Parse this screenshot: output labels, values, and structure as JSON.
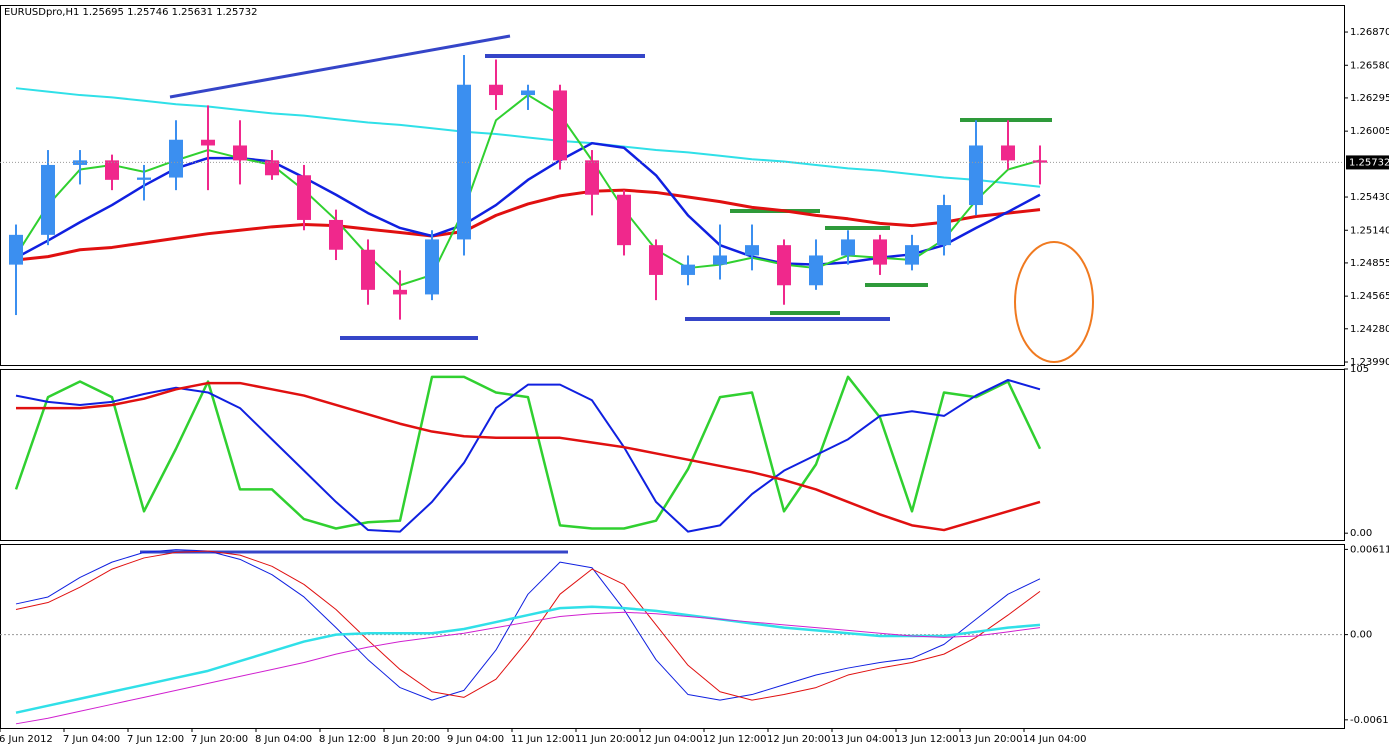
{
  "chart_data": [
    {
      "type": "candlestick",
      "title": "EURUSDpro,H1  1.25695 1.25746 1.25631 1.25732",
      "up_color": "#3b8ff0",
      "down_color": "#f0288c",
      "open": [
        1.2484,
        1.251,
        1.2571,
        1.2575,
        1.2558,
        1.256,
        1.2593,
        1.2588,
        1.2575,
        1.2562,
        1.2523,
        1.2497,
        1.2462,
        1.2458,
        1.2506,
        1.2641,
        1.2632,
        1.2636,
        1.2575,
        1.2545,
        1.2501,
        1.2475,
        1.2484,
        1.2492,
        1.2501,
        1.2466,
        1.2492,
        1.2506,
        1.2484,
        1.2501,
        1.2536,
        1.2588,
        1.2575
      ],
      "high": [
        1.2519,
        1.2584,
        1.2584,
        1.258,
        1.2571,
        1.261,
        1.2623,
        1.261,
        1.2584,
        1.2571,
        1.2532,
        1.2506,
        1.2479,
        1.2514,
        1.2667,
        1.2663,
        1.2641,
        1.2641,
        1.2584,
        1.2549,
        1.2506,
        1.2492,
        1.2519,
        1.2519,
        1.2506,
        1.2506,
        1.2514,
        1.251,
        1.251,
        1.2545,
        1.261,
        1.261,
        1.2588
      ],
      "low": [
        1.244,
        1.2501,
        1.2554,
        1.2549,
        1.254,
        1.2549,
        1.2549,
        1.2554,
        1.2558,
        1.2514,
        1.2488,
        1.2449,
        1.2436,
        1.2453,
        1.2492,
        1.2619,
        1.2619,
        1.2567,
        1.2527,
        1.2492,
        1.2453,
        1.2466,
        1.2471,
        1.2479,
        1.2449,
        1.2462,
        1.2484,
        1.2475,
        1.2479,
        1.2492,
        1.2527,
        1.2567,
        1.2554
      ],
      "close": [
        1.251,
        1.2571,
        1.2575,
        1.2558,
        1.256,
        1.2593,
        1.2588,
        1.2575,
        1.2562,
        1.2523,
        1.2497,
        1.2462,
        1.2458,
        1.2506,
        1.2641,
        1.2632,
        1.2636,
        1.2575,
        1.2545,
        1.2501,
        1.2475,
        1.2484,
        1.2492,
        1.2501,
        1.2466,
        1.2492,
        1.2506,
        1.2484,
        1.2501,
        1.2536,
        1.2588,
        1.2575,
        1.2573
      ],
      "series": [
        {
          "color": "#30e0e8",
          "width": 2,
          "values": [
            1.2638,
            1.2635,
            1.2632,
            1.263,
            1.2627,
            1.2624,
            1.2622,
            1.2619,
            1.2616,
            1.2614,
            1.2611,
            1.2608,
            1.2606,
            1.2603,
            1.26,
            1.2598,
            1.2595,
            1.2592,
            1.259,
            1.2587,
            1.2584,
            1.2582,
            1.2579,
            1.2576,
            1.2574,
            1.2571,
            1.2568,
            1.2566,
            1.2563,
            1.256,
            1.2558,
            1.2555,
            1.2552
          ]
        },
        {
          "color": "#e01010",
          "width": 3,
          "values": [
            1.2488,
            1.2491,
            1.2497,
            1.2499,
            1.2503,
            1.2507,
            1.2511,
            1.2514,
            1.2517,
            1.2519,
            1.2518,
            1.2515,
            1.2512,
            1.2509,
            1.2513,
            1.2527,
            1.2537,
            1.2544,
            1.2548,
            1.2549,
            1.2547,
            1.2543,
            1.2539,
            1.2534,
            1.2531,
            1.2527,
            1.2524,
            1.252,
            1.2518,
            1.2521,
            1.2526,
            1.2529,
            1.2532
          ]
        },
        {
          "color": "#1020e0",
          "width": 2.5,
          "values": [
            1.249,
            1.2505,
            1.2521,
            1.2536,
            1.2553,
            1.2568,
            1.2577,
            1.2577,
            1.2574,
            1.256,
            1.2545,
            1.2529,
            1.2516,
            1.2509,
            1.2519,
            1.2536,
            1.2558,
            1.2575,
            1.259,
            1.2586,
            1.2562,
            1.2527,
            1.2501,
            1.2491,
            1.2485,
            1.2484,
            1.2486,
            1.249,
            1.2493,
            1.2501,
            1.2516,
            1.253,
            1.2545
          ]
        },
        {
          "color": "#30d030",
          "width": 2,
          "values": [
            1.2492,
            1.2536,
            1.2567,
            1.2571,
            1.2565,
            1.2575,
            1.2584,
            1.2577,
            1.2571,
            1.2549,
            1.2523,
            1.2492,
            1.2466,
            1.2475,
            1.2532,
            1.261,
            1.2632,
            1.2615,
            1.2575,
            1.2532,
            1.2497,
            1.2481,
            1.2484,
            1.249,
            1.2484,
            1.2481,
            1.2492,
            1.249,
            1.2488,
            1.2506,
            1.254,
            1.2567,
            1.2575
          ]
        }
      ],
      "current_price": 1.25732,
      "ylim": [
        1.23964,
        1.27106
      ],
      "yticks": [
        {
          "value": 1.2687,
          "label": "1.26870"
        },
        {
          "value": 1.2658,
          "label": "1.26580"
        },
        1.26295,
        1.26005,
        {
          "value": 1.2543,
          "label": "1.25430"
        },
        {
          "value": 1.2514,
          "label": "1.25140"
        },
        1.24855,
        1.24565,
        {
          "value": 1.2428,
          "label": "1.24280"
        },
        {
          "value": 1.2399,
          "label": "1.23990"
        }
      ]
    },
    {
      "type": "line",
      "series": [
        {
          "color": "#30d030",
          "width": 2.5,
          "values": [
            28,
            87,
            97,
            87,
            14,
            54,
            97,
            28,
            28,
            9,
            3,
            7,
            8,
            100,
            100,
            90,
            87,
            5,
            3,
            3,
            8,
            41,
            87,
            90,
            14,
            44,
            100,
            74,
            14,
            90,
            87,
            97,
            54
          ]
        },
        {
          "color": "#1020e0",
          "width": 2,
          "values": [
            88,
            84,
            82,
            84,
            89,
            93,
            90,
            80,
            60,
            40,
            20,
            2,
            1,
            20,
            45,
            80,
            95,
            95,
            85,
            55,
            20,
            1,
            5,
            25,
            40,
            50,
            60,
            75,
            78,
            75,
            88,
            98,
            92
          ]
        },
        {
          "color": "#e01010",
          "width": 2.5,
          "values": [
            80,
            80,
            80,
            82,
            86,
            92,
            96,
            96,
            92,
            88,
            82,
            76,
            70,
            65,
            62,
            61,
            61,
            61,
            58,
            55,
            51,
            47,
            43,
            39,
            34,
            28,
            20,
            12,
            5,
            2,
            8,
            14,
            20
          ]
        }
      ],
      "ylim": [
        -5,
        105
      ],
      "yticks": [
        105,
        {
          "value": 0,
          "label": "0.00"
        }
      ]
    },
    {
      "type": "line",
      "categories": [
        "6 Jun 2012",
        null,
        "7 Jun 04:00",
        null,
        "7 Jun 12:00",
        null,
        "7 Jun 20:00",
        null,
        "8 Jun 04:00",
        null,
        "8 Jun 12:00",
        null,
        "8 Jun 20:00",
        null,
        "9 Jun 04:00",
        null,
        "11 Jun 12:00",
        null,
        "11 Jun 20:00",
        null,
        "12 Jun 04:00",
        null,
        "12 Jun 12:00",
        null,
        "12 Jun 20:00",
        null,
        "13 Jun 04:00",
        null,
        "13 Jun 12:00",
        null,
        "13 Jun 20:00",
        null,
        "14 Jun 04:00"
      ],
      "series": [
        {
          "color": "#1020e0",
          "width": 1,
          "values": [
            0.0022,
            0.0027,
            0.0041,
            0.0052,
            0.0059,
            0.0061,
            0.006,
            0.0054,
            0.0043,
            0.0027,
            0.0005,
            -0.0018,
            -0.0038,
            -0.0047,
            -0.004,
            -0.0011,
            0.0029,
            0.0052,
            0.0048,
            0.0018,
            -0.0018,
            -0.0043,
            -0.0047,
            -0.0043,
            -0.0036,
            -0.0029,
            -0.0024,
            -0.002,
            -0.0017,
            -0.0007,
            0.0011,
            0.0029,
            0.004
          ]
        },
        {
          "color": "#e01010",
          "width": 1,
          "values": [
            0.0018,
            0.0023,
            0.0034,
            0.0047,
            0.0055,
            0.0059,
            0.006,
            0.0057,
            0.0049,
            0.0036,
            0.0018,
            -0.0004,
            -0.0025,
            -0.0041,
            -0.0045,
            -0.0032,
            -0.0004,
            0.0029,
            0.0047,
            0.0036,
            0.0007,
            -0.0022,
            -0.0041,
            -0.0047,
            -0.0043,
            -0.0038,
            -0.0029,
            -0.0024,
            -0.002,
            -0.0014,
            -0.0002,
            0.0014,
            0.0031
          ]
        },
        {
          "color": "#30e0e8",
          "width": 2.5,
          "values": [
            -0.0056,
            -0.0051,
            -0.0046,
            -0.0041,
            -0.0036,
            -0.0031,
            -0.0026,
            -0.0019,
            -0.0012,
            -0.0005,
            0,
            0.0001,
            0.0001,
            0.0001,
            0.0004,
            0.0009,
            0.0014,
            0.0019,
            0.002,
            0.0019,
            0.0017,
            0.0014,
            0.0011,
            0.0008,
            0.0005,
            0.0003,
            0.0001,
            -0.0001,
            -0.0001,
            -0.0001,
            0.0002,
            0.0005,
            0.0007
          ]
        },
        {
          "color": "#d020d0",
          "width": 1,
          "values": [
            -0.0064,
            -0.006,
            -0.0055,
            -0.005,
            -0.0045,
            -0.004,
            -0.0035,
            -0.003,
            -0.0025,
            -0.002,
            -0.0014,
            -0.0009,
            -0.0005,
            -0.0002,
            0.0001,
            0.0005,
            0.0009,
            0.0013,
            0.0015,
            0.0016,
            0.0015,
            0.0013,
            0.0011,
            0.0009,
            0.0007,
            0.0005,
            0.0003,
            0.0001,
            -0.0001,
            -0.0002,
            -0.0001,
            0.0002,
            0.0005
          ]
        }
      ],
      "ylim": [
        -0.0067,
        0.0065
      ],
      "yticks": [
        0.006114,
        {
          "value": 0,
          "label": "0.00"
        },
        -0.006114
      ]
    }
  ]
}
